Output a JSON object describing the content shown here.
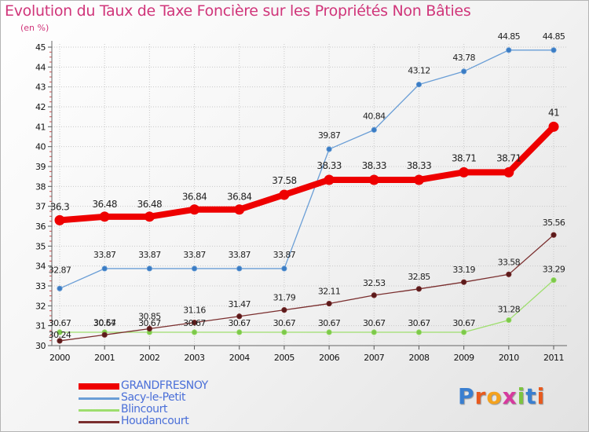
{
  "title": "Evolution du Taux de Taxe Foncière sur les Propriétés Non Bâties",
  "subtitle": "(en %)",
  "brand": "Proxiti",
  "chart_data": {
    "type": "line",
    "title": "Evolution du Taux de Taxe Foncière sur les Propriétés Non Bâties",
    "ylabel": "(en %)",
    "x": [
      "2000",
      "2001",
      "2002",
      "2003",
      "2004",
      "2005",
      "2006",
      "2007",
      "2008",
      "2009",
      "2010",
      "2011"
    ],
    "ylim": [
      30,
      45
    ],
    "yticks": [
      "30",
      "31",
      "32",
      "33",
      "34",
      "35",
      "36",
      "37",
      "38",
      "39",
      "40",
      "41",
      "42",
      "43",
      "44",
      "45"
    ],
    "grid": true,
    "legend_position": "bottom-left",
    "series": [
      {
        "name": "Sacy-le-Petit",
        "color": "#6a9ed6",
        "marker_color": "#3a7cc4",
        "values": [
          32.87,
          33.87,
          33.87,
          33.87,
          33.87,
          33.87,
          39.87,
          40.84,
          43.12,
          43.78,
          44.85,
          44.85
        ],
        "labels": [
          "32.87",
          "33.87",
          "33.87",
          "33.87",
          "33.87",
          "33.87",
          "39.87",
          "40.84",
          "43.12",
          "43.78",
          "44.85",
          "44.85"
        ]
      },
      {
        "name": "Blincourt",
        "color": "#9ede6e",
        "marker_color": "#7cc84a",
        "values": [
          30.67,
          30.67,
          30.67,
          30.67,
          30.67,
          30.67,
          30.67,
          30.67,
          30.67,
          30.67,
          31.28,
          33.29
        ],
        "labels": [
          "30.67",
          "30.67",
          "30.67",
          "30.67",
          "30.67",
          "30.67",
          "30.67",
          "30.67",
          "30.67",
          "30.67",
          "31.28",
          "33.29"
        ]
      },
      {
        "name": "Houdancourt",
        "color": "#7a2e2e",
        "marker_color": "#5a1a1a",
        "values": [
          30.24,
          30.54,
          30.85,
          31.16,
          31.47,
          31.79,
          32.11,
          32.53,
          32.85,
          33.19,
          33.58,
          35.56
        ],
        "labels": [
          "30.24",
          "30.54",
          "30.85",
          "31.16",
          "31.47",
          "31.79",
          "32.11",
          "32.53",
          "32.85",
          "33.19",
          "33.58",
          "35.56"
        ]
      },
      {
        "name": "GRANDFRESNOY",
        "color": "#ee0000",
        "marker_color": "#ee0000",
        "values": [
          36.3,
          36.48,
          36.48,
          36.84,
          36.84,
          37.58,
          38.33,
          38.33,
          38.33,
          38.71,
          38.71,
          41
        ],
        "labels": [
          "36.3",
          "36.48",
          "36.48",
          "36.84",
          "36.84",
          "37.58",
          "38.33",
          "38.33",
          "38.33",
          "38.71",
          "38.71",
          "41"
        ]
      }
    ],
    "legend": [
      {
        "name": "GRANDFRESNOY",
        "color": "#ee0000"
      },
      {
        "name": "Sacy-le-Petit",
        "color": "#6a9ed6"
      },
      {
        "name": "Blincourt",
        "color": "#9ede6e"
      },
      {
        "name": "Houdancourt",
        "color": "#7a2e2e"
      }
    ]
  }
}
